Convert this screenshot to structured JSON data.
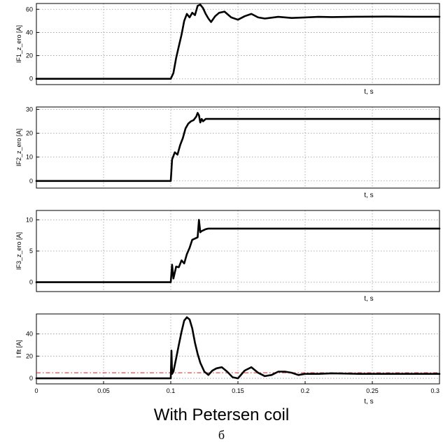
{
  "caption": "With Petersen coil",
  "sub_caption": "б",
  "colors": {
    "trace": "#000000",
    "grid": "#9a9a9a",
    "axes_frame": "#000000",
    "threshold": "#cc2222"
  },
  "chart_data": [
    {
      "type": "line",
      "ylabel": "IF1_z_ero [A]",
      "xlabel": "t, s",
      "xlim": [
        0,
        0.3
      ],
      "ylim": [
        -5,
        65
      ],
      "yticks": [
        "0",
        "20",
        "40",
        "60"
      ],
      "ytick_values": [
        0,
        20,
        40,
        60
      ],
      "x_tick_labels_shown": false,
      "grid": true,
      "series": [
        {
          "x": [
            0,
            0.1,
            0.102,
            0.104,
            0.106,
            0.108,
            0.11,
            0.112,
            0.114,
            0.116,
            0.118,
            0.12,
            0.122,
            0.124,
            0.126,
            0.128,
            0.13,
            0.133,
            0.136,
            0.14,
            0.145,
            0.15,
            0.155,
            0.16,
            0.165,
            0.17,
            0.18,
            0.19,
            0.2,
            0.21,
            0.22,
            0.24,
            0.26,
            0.28,
            0.3
          ],
          "y": [
            0,
            0,
            5,
            18,
            28,
            38,
            50,
            56,
            53,
            57,
            55,
            63,
            64,
            61,
            56,
            52,
            49,
            54,
            57,
            58,
            53,
            51,
            54,
            56,
            53,
            52,
            53.5,
            52.5,
            53,
            53.5,
            53.3,
            53.6,
            53.7,
            53.6,
            53.6
          ]
        }
      ]
    },
    {
      "type": "line",
      "ylabel": "IF2_z_ero [A]",
      "xlabel": "t, s",
      "xlim": [
        0,
        0.3
      ],
      "ylim": [
        -3,
        31
      ],
      "yticks": [
        "0",
        "10",
        "20",
        "30"
      ],
      "ytick_values": [
        0,
        10,
        20,
        30
      ],
      "x_tick_labels_shown": false,
      "grid": true,
      "series": [
        {
          "x": [
            0,
            0.1,
            0.101,
            0.103,
            0.105,
            0.107,
            0.109,
            0.111,
            0.113,
            0.115,
            0.117,
            0.119,
            0.12,
            0.121,
            0.122,
            0.123,
            0.124,
            0.126,
            0.128,
            0.3
          ],
          "y": [
            0,
            0,
            9,
            12,
            11,
            15,
            18,
            22,
            24,
            25,
            25.5,
            27,
            28.5,
            27.5,
            24.5,
            26,
            25,
            26,
            26,
            26
          ]
        }
      ]
    },
    {
      "type": "line",
      "ylabel": "IF3_z_ero [A]",
      "xlabel": "t, s",
      "xlim": [
        0,
        0.3
      ],
      "ylim": [
        -1.5,
        11.5
      ],
      "yticks": [
        "0",
        "5",
        "10"
      ],
      "ytick_values": [
        0,
        5,
        10
      ],
      "x_tick_labels_shown": false,
      "grid": true,
      "series": [
        {
          "x": [
            0,
            0.1,
            0.101,
            0.102,
            0.104,
            0.106,
            0.108,
            0.11,
            0.112,
            0.114,
            0.116,
            0.118,
            0.12,
            0.121,
            0.122,
            0.123,
            0.124,
            0.126,
            0.128,
            0.13,
            0.3
          ],
          "y": [
            0,
            0,
            2.8,
            0.6,
            2.5,
            2.4,
            3.5,
            3,
            4.5,
            5.5,
            6.8,
            7,
            7.2,
            10,
            8,
            8.2,
            8.3,
            8.5,
            8.6,
            8.6,
            8.6
          ]
        }
      ]
    },
    {
      "type": "line",
      "ylabel": "I flt [A]",
      "xlabel": "t, s",
      "xlim": [
        0,
        0.3
      ],
      "ylim": [
        -5,
        58
      ],
      "yticks": [
        "0",
        "20",
        "40"
      ],
      "ytick_values": [
        0,
        20,
        40
      ],
      "xticks": [
        "0",
        "0.05",
        "0.1",
        "0.15",
        "0.2",
        "0.25",
        "0.3"
      ],
      "xtick_values": [
        0,
        0.05,
        0.1,
        0.15,
        0.2,
        0.25,
        0.3
      ],
      "x_tick_labels_shown": true,
      "grid": true,
      "threshold": 5,
      "series": [
        {
          "x": [
            0,
            0.1,
            0.1005,
            0.101,
            0.102,
            0.104,
            0.106,
            0.108,
            0.11,
            0.112,
            0.114,
            0.116,
            0.118,
            0.12,
            0.122,
            0.125,
            0.128,
            0.131,
            0.134,
            0.138,
            0.142,
            0.146,
            0.15,
            0.155,
            0.16,
            0.165,
            0.17,
            0.175,
            0.18,
            0.185,
            0.19,
            0.195,
            0.2,
            0.21,
            0.22,
            0.24,
            0.26,
            0.28,
            0.3
          ],
          "y": [
            0,
            0,
            25,
            4,
            6,
            18,
            30,
            42,
            52,
            55,
            53,
            45,
            32,
            22,
            14,
            6,
            3,
            7,
            9,
            10,
            6,
            1,
            0,
            7,
            10,
            5,
            2,
            3,
            6,
            6,
            5,
            3,
            4,
            4,
            4.5,
            4,
            4,
            4,
            4
          ]
        }
      ]
    }
  ]
}
